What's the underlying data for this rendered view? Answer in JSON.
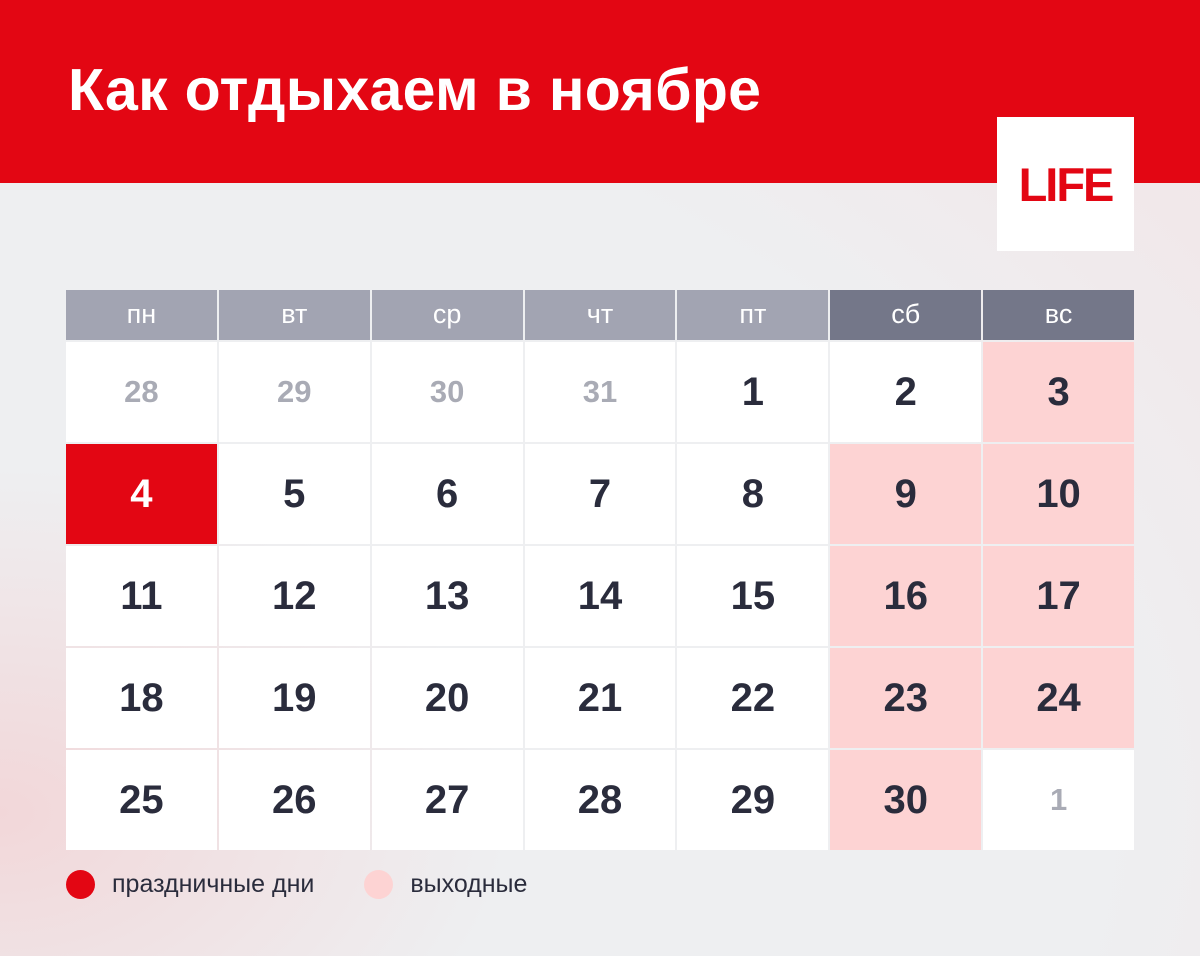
{
  "title": "Как отдыхаем в ноябре",
  "logo": "LIFE",
  "weekdays": [
    "пн",
    "вт",
    "ср",
    "чт",
    "пт",
    "сб",
    "вс"
  ],
  "days": [
    {
      "n": "28",
      "type": "other"
    },
    {
      "n": "29",
      "type": "other"
    },
    {
      "n": "30",
      "type": "other"
    },
    {
      "n": "31",
      "type": "other"
    },
    {
      "n": "1",
      "type": "work"
    },
    {
      "n": "2",
      "type": "work"
    },
    {
      "n": "3",
      "type": "off"
    },
    {
      "n": "4",
      "type": "holiday"
    },
    {
      "n": "5",
      "type": "work"
    },
    {
      "n": "6",
      "type": "work"
    },
    {
      "n": "7",
      "type": "work"
    },
    {
      "n": "8",
      "type": "work"
    },
    {
      "n": "9",
      "type": "off"
    },
    {
      "n": "10",
      "type": "off"
    },
    {
      "n": "11",
      "type": "work"
    },
    {
      "n": "12",
      "type": "work"
    },
    {
      "n": "13",
      "type": "work"
    },
    {
      "n": "14",
      "type": "work"
    },
    {
      "n": "15",
      "type": "work"
    },
    {
      "n": "16",
      "type": "off"
    },
    {
      "n": "17",
      "type": "off"
    },
    {
      "n": "18",
      "type": "work"
    },
    {
      "n": "19",
      "type": "work"
    },
    {
      "n": "20",
      "type": "work"
    },
    {
      "n": "21",
      "type": "work"
    },
    {
      "n": "22",
      "type": "work"
    },
    {
      "n": "23",
      "type": "off"
    },
    {
      "n": "24",
      "type": "off"
    },
    {
      "n": "25",
      "type": "work"
    },
    {
      "n": "26",
      "type": "work"
    },
    {
      "n": "27",
      "type": "work"
    },
    {
      "n": "28",
      "type": "work"
    },
    {
      "n": "29",
      "type": "work"
    },
    {
      "n": "30",
      "type": "off"
    },
    {
      "n": "1",
      "type": "other"
    }
  ],
  "legend": {
    "holiday_label": "праздничные дни",
    "weekend_label": "выходные"
  },
  "colors": {
    "brand_red": "#e30613",
    "weekend_pink": "#fdd3d3",
    "header_gray": "#a2a4b2",
    "header_dark": "#747789",
    "text_dark": "#2a2c3c"
  }
}
